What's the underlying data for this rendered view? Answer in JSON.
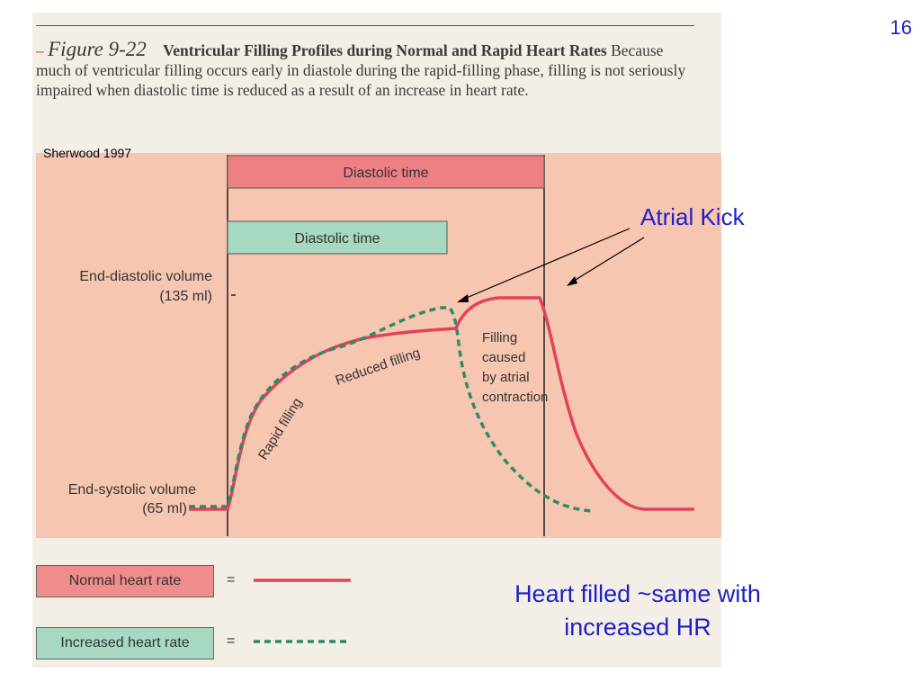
{
  "slide_number": "16",
  "figure": {
    "dash": "–",
    "label": "Figure 9-22",
    "title": "Ventricular Filling Profiles during Normal and Rapid Heart Rates",
    "body": "Because much of ventricular filling occurs early in diastole during the rapid-filling phase, filling is not seriously impaired when diastolic time is reduced as a result of an increase in heart rate.",
    "source": "Sherwood 1997"
  },
  "chart_data": {
    "type": "line",
    "y_labels": {
      "edv_label": "End-diastolic volume",
      "edv_value": "(135 ml)",
      "esv_label": "End-systolic volume",
      "esv_value": "(65 ml)"
    },
    "diastolic_normal_label": "Diastolic time",
    "diastolic_increased_label": "Diastolic time",
    "phase_labels": {
      "rapid": "Rapid filling",
      "reduced": "Reduced filling",
      "atrial_line1": "Filling",
      "atrial_line2": "caused",
      "atrial_line3": "by atrial",
      "atrial_line4": "contraction"
    },
    "series": [
      {
        "name": "Normal heart rate",
        "color": "#e0435a",
        "style": "solid"
      },
      {
        "name": "Increased heart rate",
        "color": "#2f8a6a",
        "style": "dashed"
      }
    ]
  },
  "legend": {
    "normal_label": "Normal heart rate",
    "increased_label": "Increased heart rate",
    "equals": "="
  },
  "annotations": {
    "atrial_kick": "Atrial Kick",
    "heart_filled": "Heart filled ~same with increased HR"
  }
}
